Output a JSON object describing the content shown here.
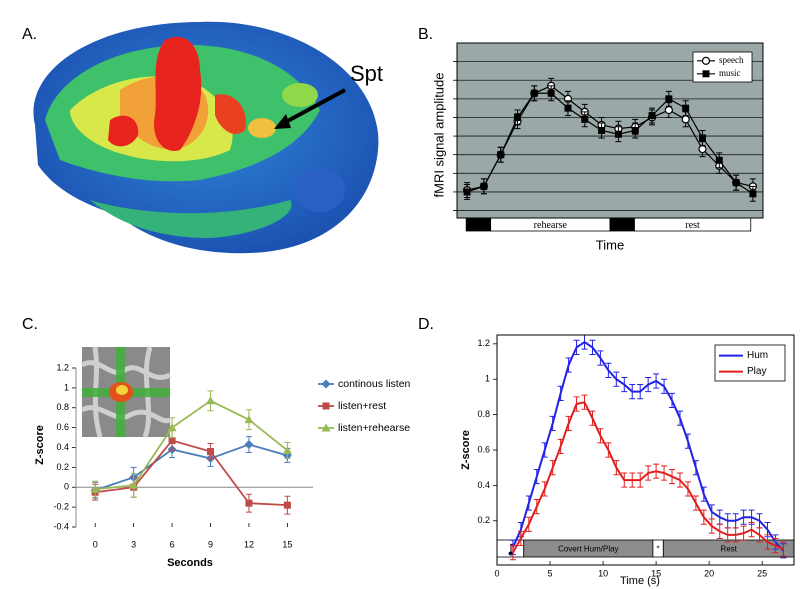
{
  "panel_labels": [
    "A.",
    "B.",
    "C.",
    "D."
  ],
  "annotation": "Spt",
  "chart_data": [
    {
      "type": "line",
      "ylabel": "fMRI signal amplitude",
      "xlabel": "Time",
      "x": [
        1,
        2,
        3,
        4,
        5,
        6,
        7,
        8,
        9,
        10,
        11,
        12,
        13,
        14,
        15,
        16,
        17,
        18
      ],
      "xlim": [
        0.4,
        18.6
      ],
      "ylim": [
        -0.4,
        9
      ],
      "yticks": [
        0,
        1,
        2,
        3,
        4,
        5,
        6,
        7,
        8
      ],
      "grid": true,
      "legend": "upper right",
      "series": [
        {
          "name": "speech",
          "color": "#000000",
          "marker": "circle-open",
          "error": 0.4,
          "values": [
            1.1,
            1.3,
            3.0,
            4.8,
            6.3,
            6.7,
            6.0,
            5.3,
            4.6,
            4.4,
            4.5,
            5.0,
            5.4,
            4.9,
            3.3,
            2.4,
            1.5,
            1.3
          ]
        },
        {
          "name": "music",
          "color": "#000000",
          "marker": "square",
          "error": 0.4,
          "values": [
            1.0,
            1.3,
            3.0,
            5.0,
            6.3,
            6.3,
            5.5,
            4.9,
            4.3,
            4.1,
            4.3,
            5.1,
            6.0,
            5.5,
            3.9,
            2.7,
            1.5,
            0.9
          ]
        }
      ],
      "phase_labels": [
        "rehearse",
        "rest"
      ]
    },
    {
      "type": "line",
      "ylabel": "Z-score",
      "xlabel": "Seconds",
      "x": [
        0,
        3,
        6,
        9,
        12,
        15
      ],
      "xlim": [
        -1.5,
        17
      ],
      "xticks": [
        0,
        3,
        6,
        9,
        12,
        15
      ],
      "ylim": [
        -0.4,
        1.2
      ],
      "yticks": [
        -0.4,
        -0.2,
        0,
        0.2,
        0.4,
        0.6,
        0.8,
        1,
        1.2
      ],
      "grid": false,
      "legend": "right",
      "series": [
        {
          "name": "continous listen",
          "color": "#4a7ebb",
          "marker": "diamond",
          "values": [
            -0.03,
            0.1,
            0.38,
            0.29,
            0.43,
            0.32
          ],
          "errors": [
            0.08,
            0.1,
            0.08,
            0.08,
            0.08,
            0.07
          ]
        },
        {
          "name": "listen+rest",
          "color": "#be4b48",
          "marker": "square",
          "values": [
            -0.05,
            0.0,
            0.47,
            0.36,
            -0.16,
            -0.18
          ],
          "errors": [
            0.08,
            0.1,
            0.1,
            0.08,
            0.09,
            0.09
          ]
        },
        {
          "name": "listen+rehearse",
          "color": "#98b954",
          "marker": "triangle",
          "values": [
            -0.02,
            0.02,
            0.6,
            0.87,
            0.68,
            0.37
          ],
          "errors": [
            0.08,
            0.12,
            0.1,
            0.1,
            0.1,
            0.08
          ]
        }
      ]
    },
    {
      "type": "line",
      "ylabel": "Z-score",
      "xlabel": "Time (s)",
      "x": [
        1.5,
        2.25,
        3,
        3.75,
        4.5,
        5.25,
        6,
        6.75,
        7.5,
        8.25,
        9,
        9.75,
        10.5,
        11.25,
        12,
        12.75,
        13.5,
        14.25,
        15,
        15.75,
        16.5,
        17.25,
        18,
        18.75,
        19.5,
        20.25,
        21,
        21.75,
        22.5,
        23.25,
        24,
        24.75,
        25.5,
        26.25,
        27
      ],
      "xlim": [
        0,
        28
      ],
      "xticks": [
        0,
        5,
        10,
        15,
        20,
        25
      ],
      "ylim": [
        -0.05,
        1.25
      ],
      "yticks": [
        0.2,
        0.4,
        0.6,
        0.8,
        1,
        1.2
      ],
      "grid": false,
      "legend": "upper right",
      "series": [
        {
          "name": "Hum",
          "color": "#2222e6",
          "error": 0.04,
          "values": [
            0.05,
            0.15,
            0.3,
            0.45,
            0.6,
            0.75,
            0.92,
            1.08,
            1.18,
            1.21,
            1.18,
            1.12,
            1.05,
            1.0,
            0.97,
            0.93,
            0.93,
            0.97,
            0.99,
            0.96,
            0.88,
            0.78,
            0.65,
            0.5,
            0.35,
            0.25,
            0.22,
            0.2,
            0.2,
            0.22,
            0.22,
            0.2,
            0.15,
            0.08,
            0.03
          ]
        },
        {
          "name": "Play",
          "color": "#e02020",
          "error": 0.04,
          "values": [
            0.02,
            0.1,
            0.18,
            0.28,
            0.38,
            0.5,
            0.62,
            0.75,
            0.86,
            0.87,
            0.78,
            0.68,
            0.6,
            0.5,
            0.43,
            0.43,
            0.43,
            0.47,
            0.48,
            0.47,
            0.45,
            0.43,
            0.38,
            0.3,
            0.22,
            0.17,
            0.14,
            0.12,
            0.12,
            0.13,
            0.15,
            0.12,
            0.08,
            0.06,
            0.04
          ]
        }
      ],
      "phase_labels": [
        "Covert Hum/Play",
        "*",
        "Rest"
      ]
    }
  ]
}
